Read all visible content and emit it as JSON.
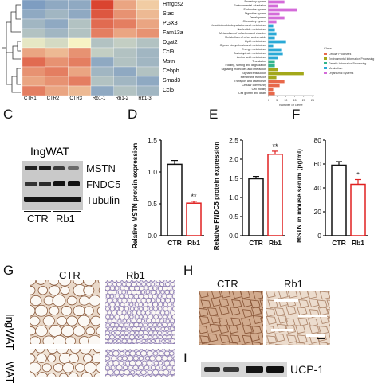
{
  "heatmap": {
    "genes": [
      "Hmgcs2",
      "Stac",
      "PGX3",
      "Fam13a",
      "Dgat2",
      "Ccl9",
      "Mstn",
      "Cebpb",
      "Smad3",
      "Ccl5"
    ],
    "columns": [
      "CTR1",
      "CTR2",
      "CTR3",
      "Rb1-1",
      "Rb1-2",
      "Rb1-3"
    ],
    "colors": {
      "low": "#4a78c0",
      "mid": "#f7f3c4",
      "high": "#d7301f"
    }
  },
  "go_chart": {
    "terms": [
      "Excretory system",
      "Environmental adaptation",
      "Endocrine system",
      "Digestive system",
      "Development",
      "Circulatory system",
      "Xenobiotics biodegradation and metabolism",
      "Nucleotide metabolism",
      "Metabolism of cofactors and vitamins",
      "Metabolism of other amino acids",
      "Lipid metabolism",
      "Glycan biosynthesis and metabolism",
      "Energy metabolism",
      "Carbohydrate metabolism",
      "Amino acid metabolism",
      "Translation",
      "Folding, sorting and degradation",
      "Signaling molecules and interaction",
      "Signal transduction",
      "Membrane transport",
      "Transport and catabolism",
      "Cellular community",
      "Cell motility",
      "Cell growth and death"
    ],
    "ticks": [
      "0",
      "5",
      "10",
      "15",
      "20",
      "25"
    ],
    "xlabel": "Number of Gene",
    "legend_title": "Class",
    "legend": [
      {
        "label": "Cellular Processes",
        "color": "#e8684a"
      },
      {
        "label": "Environmental Information Processing",
        "color": "#a3a81a"
      },
      {
        "label": "Genetic Information Processing",
        "color": "#31b58c"
      },
      {
        "label": "Metabolism",
        "color": "#2aa9d6"
      },
      {
        "label": "Organismal Systems",
        "color": "#d46bd9"
      }
    ]
  },
  "panel_c": {
    "letter": "C",
    "tissue": "IngWAT",
    "bands": [
      "MSTN",
      "FNDC5",
      "Tubulin"
    ],
    "groups": [
      "CTR",
      "Rb1"
    ]
  },
  "chart_data": [
    {
      "type": "bar",
      "panel": "D",
      "categories": [
        "CTR",
        "Rb1"
      ],
      "values": [
        1.12,
        0.51
      ],
      "errors": [
        0.06,
        0.03
      ],
      "ylabel": "Relative MSTN protein expression",
      "ylim": [
        0,
        1.5
      ],
      "ticks": [
        "0.0",
        "0.5",
        "1.0",
        "1.5"
      ],
      "significance": [
        "",
        "**"
      ]
    },
    {
      "type": "bar",
      "panel": "E",
      "categories": [
        "CTR",
        "Rb1"
      ],
      "values": [
        1.49,
        2.13
      ],
      "errors": [
        0.06,
        0.08
      ],
      "ylabel": "Relative FNDC5 protein expression",
      "ylim": [
        0,
        2.5
      ],
      "ticks": [
        "0.0",
        "0.5",
        "1.0",
        "1.5",
        "2.0",
        "2.5"
      ],
      "significance": [
        "",
        "**"
      ]
    },
    {
      "type": "bar",
      "panel": "F",
      "categories": [
        "CTR",
        "Rb1"
      ],
      "values": [
        59,
        43
      ],
      "errors": [
        3,
        4
      ],
      "ylabel": "MSTN in mouse serum  (pg/ml)",
      "ylim": [
        0,
        80
      ],
      "ticks": [
        "0",
        "20",
        "40",
        "60",
        "80"
      ],
      "significance": [
        "",
        "*"
      ]
    }
  ],
  "panel_g": {
    "letter": "G",
    "columns": [
      "CTR",
      "Rb1"
    ],
    "rows": [
      "IngWAT",
      "WAT"
    ]
  },
  "panel_h": {
    "letter": "H",
    "columns": [
      "CTR",
      "Rb1"
    ]
  },
  "panel_i": {
    "letter": "I",
    "band": "UCP-1"
  }
}
